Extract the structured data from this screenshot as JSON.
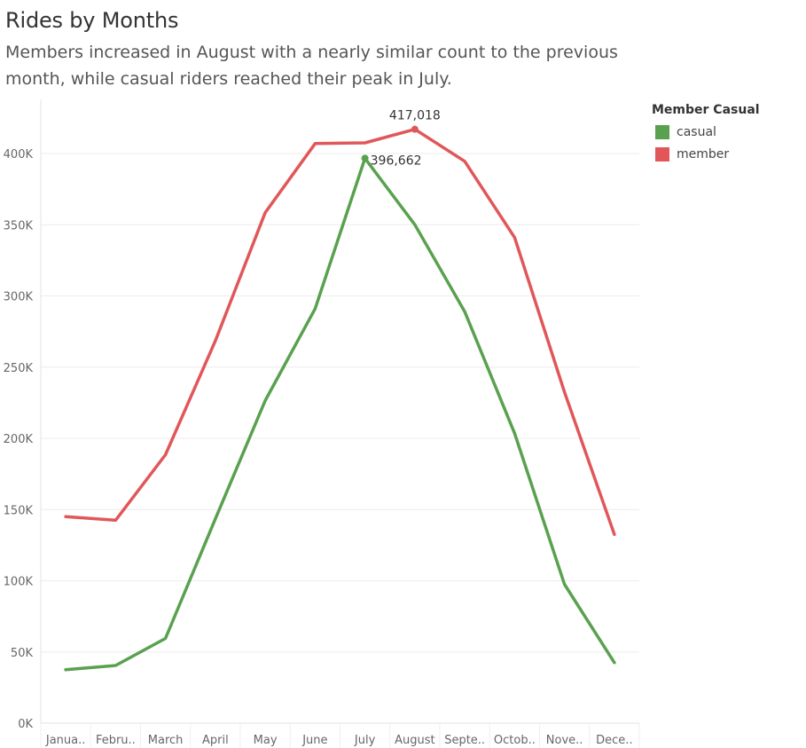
{
  "title": "Rides by Months",
  "subtitle": "Members increased in August with a nearly similar count to the previous month, while casual riders reached their peak in July.",
  "legend": {
    "title": "Member Casual",
    "items": [
      {
        "label": "casual",
        "color": "#59a14f"
      },
      {
        "label": "member",
        "color": "#e15759"
      }
    ]
  },
  "chart_data": {
    "type": "line",
    "categories": [
      "Janua..",
      "Febru..",
      "March",
      "April",
      "May",
      "June",
      "July",
      "August",
      "Septe..",
      "Octob..",
      "Nove..",
      "Dece.."
    ],
    "ylim": [
      0,
      430000
    ],
    "yticks": [
      0,
      50000,
      100000,
      150000,
      200000,
      250000,
      300000,
      350000,
      400000
    ],
    "ytick_labels": [
      "0K",
      "50K",
      "100K",
      "150K",
      "200K",
      "250K",
      "300K",
      "350K",
      "400K"
    ],
    "grid": true,
    "legend_position": "top-right",
    "series": [
      {
        "name": "casual",
        "color": "#59a14f",
        "values": [
          37500,
          40500,
          59500,
          143500,
          226500,
          291000,
          396662,
          350000,
          289000,
          203500,
          97500,
          42500
        ]
      },
      {
        "name": "member",
        "color": "#e15759",
        "values": [
          145000,
          142500,
          188500,
          268500,
          358500,
          407000,
          407500,
          417018,
          394500,
          341000,
          232500,
          132500
        ]
      }
    ],
    "annotations": [
      {
        "series": "member",
        "index": 7,
        "text": "417,018"
      },
      {
        "series": "casual",
        "index": 6,
        "text": "396,662"
      }
    ]
  }
}
